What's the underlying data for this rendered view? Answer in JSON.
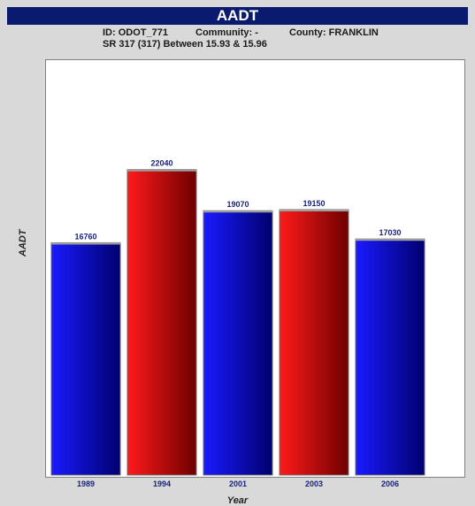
{
  "header": {
    "title": "AADT",
    "id_text": "ID: ODOT_771",
    "community_text": "Community: -",
    "county_text": "County: FRANKLIN",
    "route_text": "SR 317 (317) Between 15.93 & 15.96"
  },
  "chart_data": {
    "type": "bar",
    "title": "AADT",
    "xlabel": "Year",
    "ylabel": "AADT",
    "categories": [
      "1989",
      "1994",
      "2001",
      "2003",
      "2006"
    ],
    "values": [
      16760,
      22040,
      19070,
      19150,
      17030
    ],
    "colors": [
      "blue",
      "red",
      "blue",
      "red",
      "blue"
    ],
    "ylim": [
      0,
      30000
    ],
    "grid": false,
    "legend": "none"
  },
  "colors": {
    "title_bar": "#0a1a6e",
    "blue_light": "#1a1aff",
    "blue_dark": "#00006e",
    "red_light": "#ff1a1a",
    "red_dark": "#6e0000",
    "label": "#1a237e",
    "background": "#d9d9d9"
  }
}
